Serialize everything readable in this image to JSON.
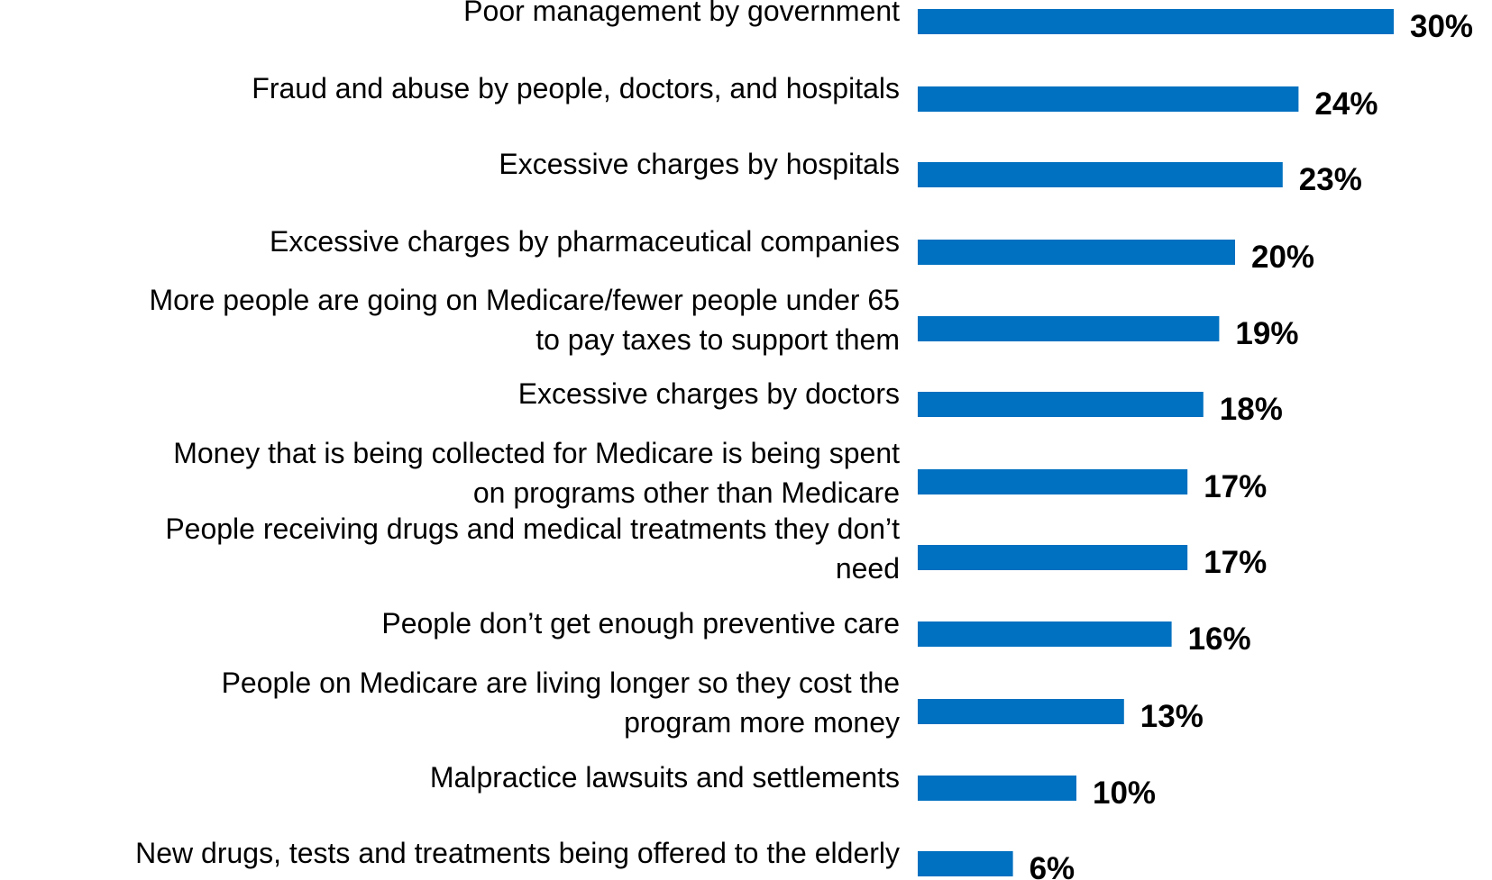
{
  "chart_data": {
    "type": "bar",
    "orientation": "horizontal",
    "title": "",
    "xlabel": "",
    "ylabel": "",
    "xlim": [
      0,
      30
    ],
    "grid": false,
    "legend": "none",
    "bar_color": "#0070C0",
    "value_suffix": "%",
    "categories": [
      [
        "Poor management by government"
      ],
      [
        "Fraud and abuse by people, doctors, and hospitals"
      ],
      [
        "Excessive charges by hospitals"
      ],
      [
        "Excessive charges by pharmaceutical companies"
      ],
      [
        "More people are going on Medicare/fewer people under 65",
        "to pay taxes to support them"
      ],
      [
        "Excessive charges by doctors"
      ],
      [
        "Money that is being collected for Medicare is being spent",
        "on programs other than Medicare"
      ],
      [
        "People receiving drugs and medical treatments they don’t",
        "need"
      ],
      [
        "People don’t get enough preventive care"
      ],
      [
        "People on Medicare are living longer so they cost the",
        "program more money"
      ],
      [
        "Malpractice lawsuits and settlements"
      ],
      [
        "New drugs, tests and treatments being offered to the elderly"
      ]
    ],
    "values": [
      30,
      24,
      23,
      20,
      19,
      18,
      17,
      17,
      16,
      13,
      10,
      6
    ],
    "value_labels": [
      "30%",
      "24%",
      "23%",
      "20%",
      "19%",
      "18%",
      "17%",
      "17%",
      "16%",
      "13%",
      "10%",
      "6%"
    ]
  }
}
